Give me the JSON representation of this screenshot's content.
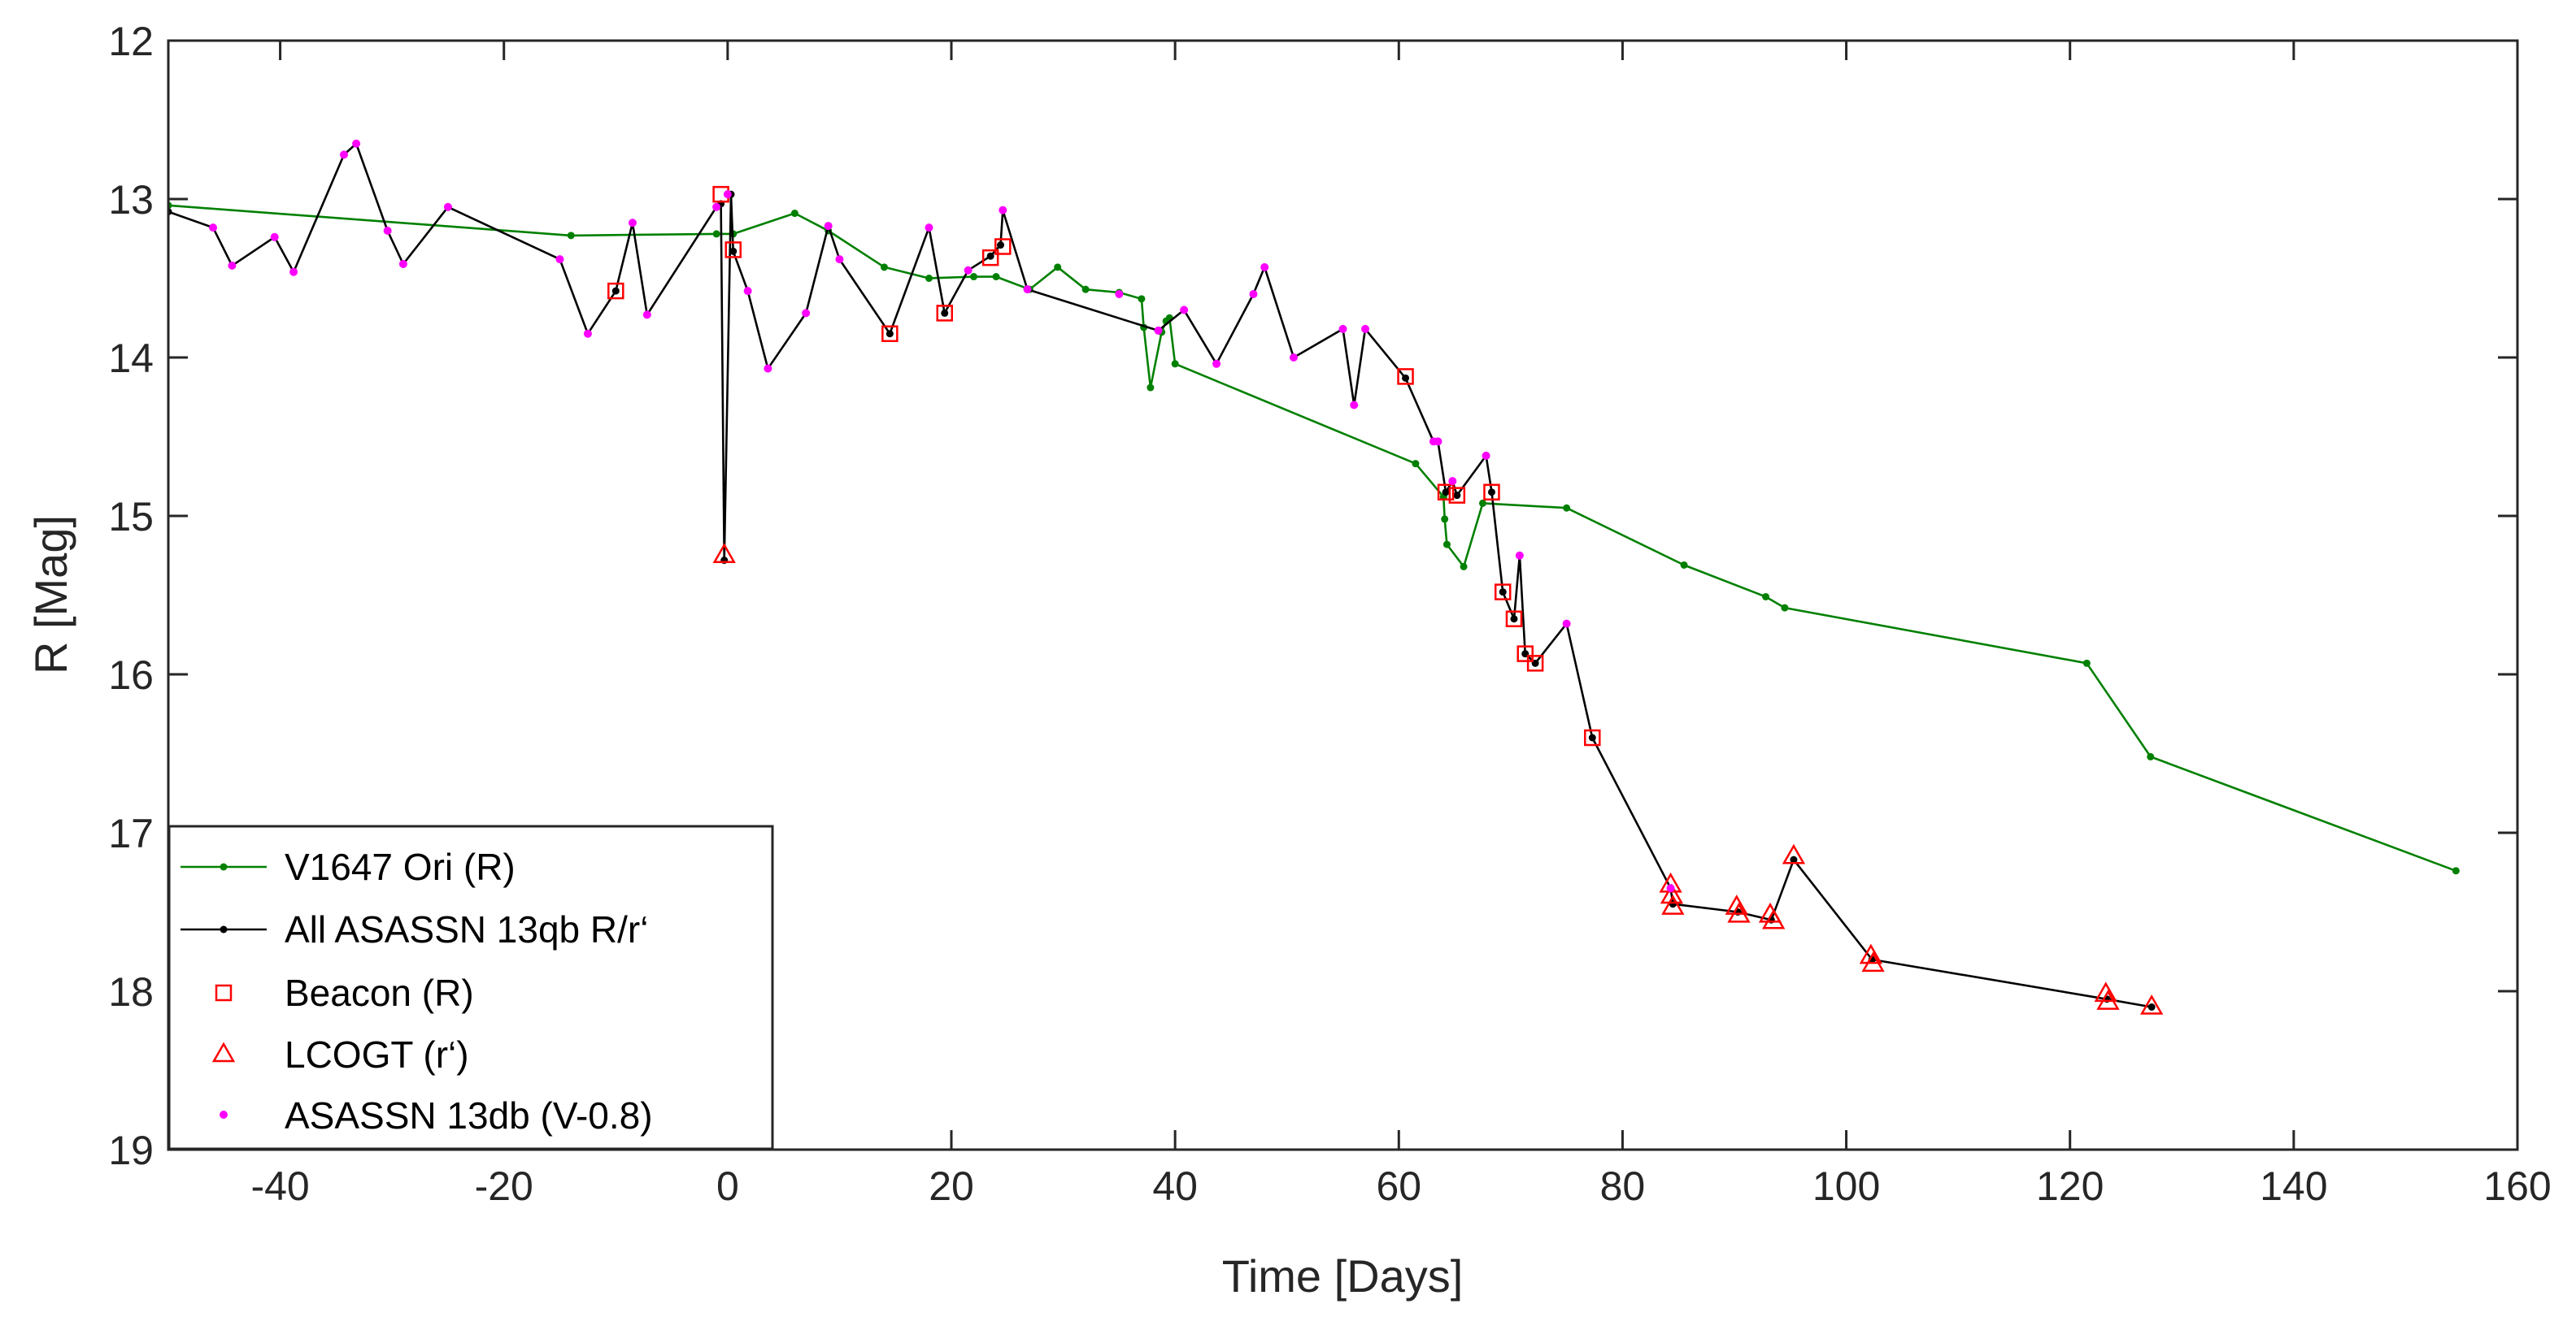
{
  "chart_data": {
    "type": "line",
    "title": "",
    "xlabel": "Time [Days]",
    "ylabel": "R [Mag]",
    "xlim": [
      -50,
      160
    ],
    "ylim": [
      12,
      19
    ],
    "y_reversed": true,
    "grid": false,
    "legend_position": "bottom-left",
    "x_ticks": [
      -40,
      -20,
      0,
      20,
      40,
      60,
      80,
      100,
      120,
      140,
      160
    ],
    "y_ticks": [
      12,
      13,
      14,
      15,
      16,
      17,
      18,
      19
    ],
    "colors": {
      "v1647": "#008000",
      "all_asassn": "#000000",
      "beacon": "#ff0000",
      "lcogt": "#ff0000",
      "asassn13db": "#ff00ff"
    },
    "series": [
      {
        "key": "v1647",
        "name": "V1647 Ori (R)",
        "style": "line-dot",
        "x": [
          -50,
          -14,
          -1,
          0.5,
          6,
          9,
          14,
          18,
          22,
          24,
          27,
          29.5,
          32,
          35,
          37,
          37.2,
          37.8,
          38.8,
          39.2,
          39.5,
          40,
          61.5,
          64,
          64.1,
          64.3,
          65.8,
          67.5,
          75,
          85.5,
          92.8,
          94.5,
          121.5,
          127.2,
          154.5
        ],
        "y": [
          13.04,
          13.23,
          13.22,
          13.22,
          13.09,
          13.2,
          13.43,
          13.5,
          13.49,
          13.49,
          13.57,
          13.43,
          13.57,
          13.59,
          13.63,
          13.81,
          14.19,
          13.84,
          13.77,
          13.75,
          14.04,
          14.67,
          14.88,
          15.02,
          15.18,
          15.32,
          14.92,
          14.95,
          15.31,
          15.51,
          15.58,
          15.93,
          16.52,
          17.24
        ]
      },
      {
        "key": "all_asassn",
        "name": "All ASASSN 13qb R/r‘",
        "style": "line-dot",
        "x": [
          -50,
          -46,
          -44.3,
          -40.5,
          -38.8,
          -34.3,
          -33.2,
          -30.4,
          -29,
          -25,
          -15,
          -12.5,
          -10,
          -8.5,
          -7.2,
          -1,
          -0.6,
          -0.3,
          0.3,
          0.5,
          1.8,
          3.6,
          7,
          9,
          10,
          14.5,
          18,
          19.4,
          21.5,
          23.5,
          24.4,
          24.6,
          26.8,
          38.5,
          40.8,
          43.7,
          47,
          48,
          50.6,
          55,
          56,
          57,
          60.6,
          63.1,
          63.5,
          64.2,
          64.8,
          65.2,
          67.8,
          68.3,
          69.3,
          70.3,
          70.8,
          71.3,
          72.2,
          75,
          77.3,
          84.3,
          84.5,
          90.3,
          93.3,
          95.3,
          102.3,
          123.3,
          127.3
        ],
        "y": [
          13.08,
          13.18,
          13.42,
          13.24,
          13.46,
          12.72,
          12.65,
          13.2,
          13.41,
          13.05,
          13.38,
          13.85,
          13.58,
          13.15,
          13.73,
          13.05,
          13.03,
          15.28,
          12.97,
          13.33,
          13.58,
          14.07,
          13.72,
          13.17,
          13.38,
          13.85,
          13.18,
          13.72,
          13.45,
          13.36,
          13.29,
          13.07,
          13.57,
          13.83,
          13.7,
          14.04,
          13.6,
          13.43,
          14.0,
          13.82,
          14.3,
          13.82,
          14.13,
          14.53,
          14.53,
          14.85,
          14.78,
          14.87,
          14.62,
          14.85,
          15.48,
          15.65,
          15.25,
          15.87,
          15.93,
          15.68,
          16.4,
          17.35,
          17.45,
          17.5,
          17.55,
          17.17,
          17.8,
          18.05,
          18.1
        ]
      },
      {
        "key": "beacon",
        "name": "Beacon (R)",
        "style": "square",
        "x": [
          -10,
          -0.6,
          0.5,
          14.5,
          19.4,
          23.5,
          24.6,
          60.6,
          64.2,
          65.2,
          68.3,
          69.3,
          70.3,
          71.3,
          72.2,
          77.3
        ],
        "y": [
          13.58,
          12.97,
          13.32,
          13.85,
          13.72,
          13.37,
          13.3,
          14.12,
          14.85,
          14.87,
          14.85,
          15.48,
          15.65,
          15.87,
          15.93,
          16.4
        ]
      },
      {
        "key": "lcogt",
        "name": "LCOGT (r‘)",
        "style": "triangle",
        "x": [
          -0.3,
          84.3,
          84.4,
          84.5,
          90.2,
          90.4,
          93.2,
          93.5,
          95.3,
          102.2,
          102.4,
          123.2,
          123.4,
          127.3
        ],
        "y": [
          15.25,
          17.33,
          17.4,
          17.47,
          17.47,
          17.52,
          17.52,
          17.56,
          17.15,
          17.78,
          17.83,
          18.02,
          18.07,
          18.1
        ]
      },
      {
        "key": "asassn13db",
        "name": "ASASSN 13db (V-0.8)",
        "style": "dot",
        "x": [
          -46,
          -44.3,
          -40.5,
          -38.8,
          -34.3,
          -33.2,
          -30.4,
          -29,
          -25,
          -15,
          -12.5,
          -8.5,
          -7.2,
          -1,
          0,
          1.8,
          3.6,
          7,
          9,
          10,
          18,
          21.5,
          24.6,
          26.8,
          35,
          38.5,
          40.8,
          43.7,
          47,
          48,
          50.6,
          55,
          56,
          57,
          63.1,
          63.5,
          64.8,
          67.8,
          70.8,
          75,
          84.3
        ],
        "y": [
          13.18,
          13.42,
          13.24,
          13.46,
          12.72,
          12.65,
          13.2,
          13.41,
          13.05,
          13.38,
          13.85,
          13.15,
          13.73,
          13.05,
          12.97,
          13.58,
          14.07,
          13.72,
          13.17,
          13.38,
          13.18,
          13.45,
          13.07,
          13.57,
          13.6,
          13.83,
          13.7,
          14.04,
          13.6,
          13.43,
          14.0,
          13.82,
          14.3,
          13.82,
          14.53,
          14.53,
          14.78,
          14.62,
          15.25,
          15.68,
          17.35
        ]
      }
    ]
  }
}
